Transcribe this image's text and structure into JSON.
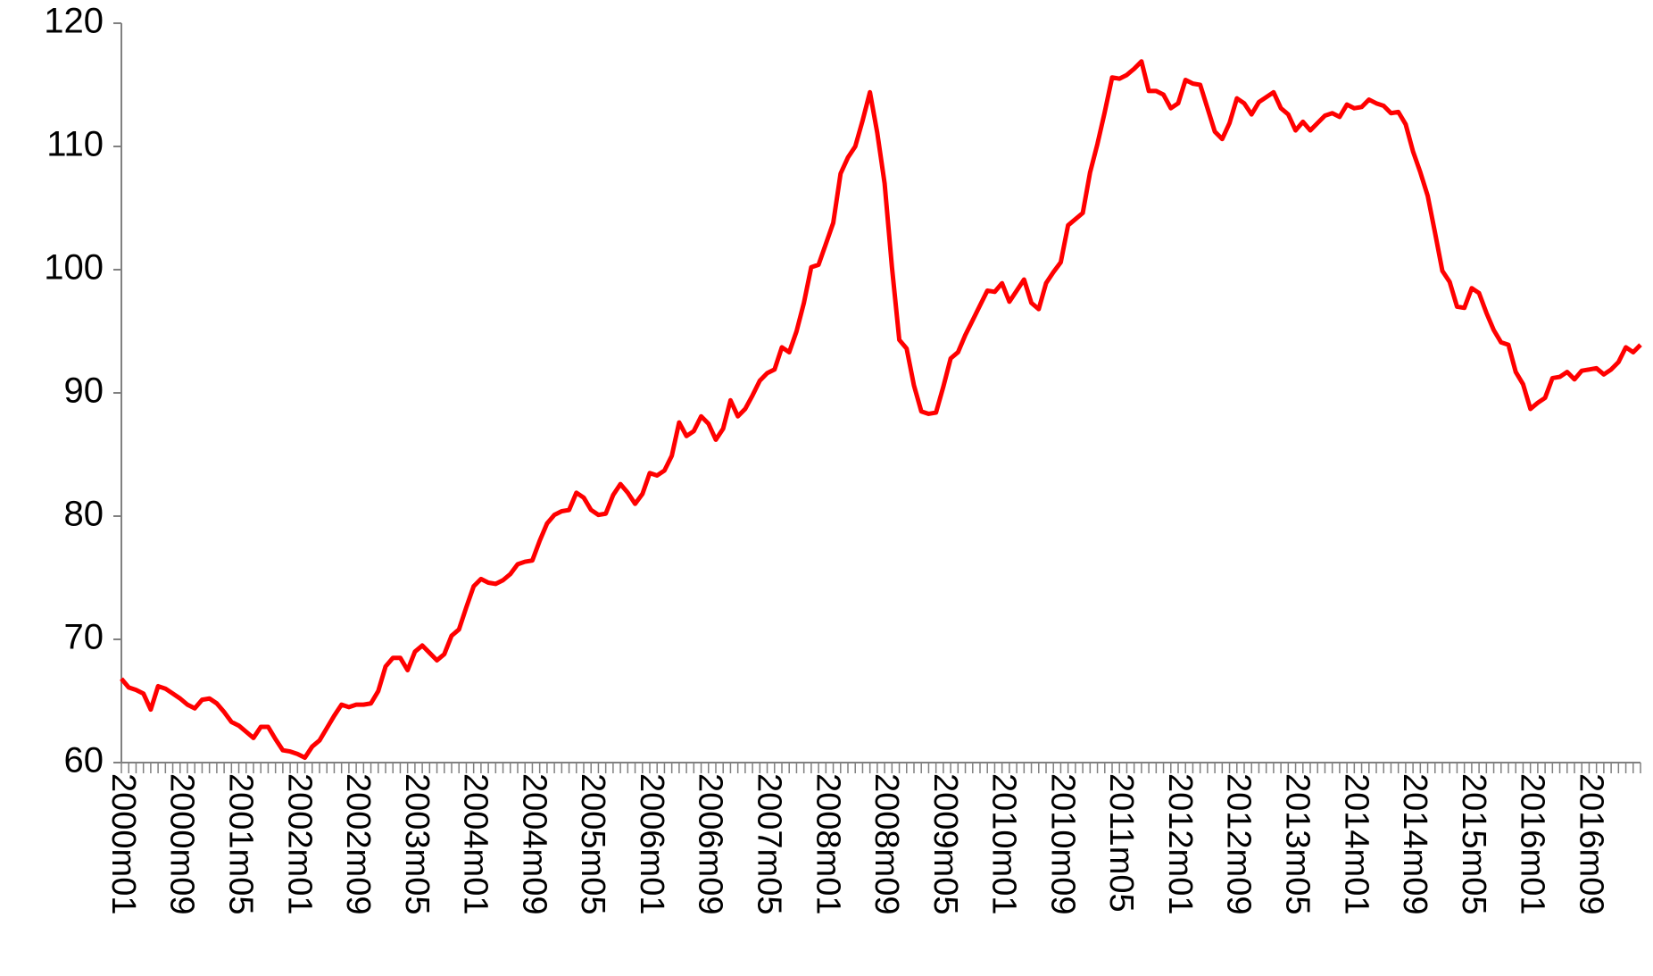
{
  "chart_data": {
    "type": "line",
    "categories": [
      "2000m01",
      null,
      null,
      null,
      null,
      null,
      null,
      null,
      "2000m09",
      null,
      null,
      null,
      null,
      null,
      null,
      null,
      "2001m05",
      null,
      null,
      null,
      null,
      null,
      null,
      null,
      "2002m01",
      null,
      null,
      null,
      null,
      null,
      null,
      null,
      "2002m09",
      null,
      null,
      null,
      null,
      null,
      null,
      null,
      "2003m05",
      null,
      null,
      null,
      null,
      null,
      null,
      null,
      "2004m01",
      null,
      null,
      null,
      null,
      null,
      null,
      null,
      "2004m09",
      null,
      null,
      null,
      null,
      null,
      null,
      null,
      "2005m05",
      null,
      null,
      null,
      null,
      null,
      null,
      null,
      "2006m01",
      null,
      null,
      null,
      null,
      null,
      null,
      null,
      "2006m09",
      null,
      null,
      null,
      null,
      null,
      null,
      null,
      "2007m05",
      null,
      null,
      null,
      null,
      null,
      null,
      null,
      "2008m01",
      null,
      null,
      null,
      null,
      null,
      null,
      null,
      "2008m09",
      null,
      null,
      null,
      null,
      null,
      null,
      null,
      "2009m05",
      null,
      null,
      null,
      null,
      null,
      null,
      null,
      "2010m01",
      null,
      null,
      null,
      null,
      null,
      null,
      null,
      "2010m09",
      null,
      null,
      null,
      null,
      null,
      null,
      null,
      "2011m05",
      null,
      null,
      null,
      null,
      null,
      null,
      null,
      "2012m01",
      null,
      null,
      null,
      null,
      null,
      null,
      null,
      "2012m09",
      null,
      null,
      null,
      null,
      null,
      null,
      null,
      "2013m05",
      null,
      null,
      null,
      null,
      null,
      null,
      null,
      "2014m01",
      null,
      null,
      null,
      null,
      null,
      null,
      null,
      "2014m09",
      null,
      null,
      null,
      null,
      null,
      null,
      null,
      "2015m05",
      null,
      null,
      null,
      null,
      null,
      null,
      null,
      "2016m01",
      null,
      null,
      null,
      null,
      null,
      null,
      null,
      "2016m09",
      null,
      null,
      null,
      null,
      null,
      null,
      null
    ],
    "values": [
      66.8,
      66.1,
      65.9,
      65.6,
      64.3,
      66.2,
      66.0,
      65.6,
      65.2,
      64.7,
      64.4,
      65.1,
      65.2,
      64.8,
      64.1,
      63.3,
      63.0,
      62.5,
      62.0,
      62.9,
      62.9,
      61.9,
      61.0,
      60.9,
      60.7,
      60.4,
      61.3,
      61.8,
      62.8,
      63.8,
      64.7,
      64.5,
      64.7,
      64.7,
      64.8,
      65.8,
      67.8,
      68.5,
      68.5,
      67.5,
      69.0,
      69.5,
      68.9,
      68.3,
      68.8,
      70.3,
      70.8,
      72.6,
      74.3,
      74.9,
      74.6,
      74.5,
      74.8,
      75.3,
      76.1,
      76.3,
      76.4,
      78.0,
      79.4,
      80.1,
      80.4,
      80.5,
      81.9,
      81.5,
      80.5,
      80.1,
      80.2,
      81.7,
      82.6,
      81.9,
      81.0,
      81.8,
      83.5,
      83.3,
      83.7,
      84.9,
      87.6,
      86.5,
      86.9,
      88.1,
      87.5,
      86.2,
      87.1,
      89.4,
      88.1,
      88.7,
      89.8,
      91.0,
      91.6,
      91.9,
      93.7,
      93.3,
      95.0,
      97.3,
      100.2,
      100.4,
      102.1,
      103.8,
      107.8,
      109.1,
      110.0,
      112.1,
      114.4,
      111.1,
      107.0,
      100.2,
      94.3,
      93.6,
      90.6,
      88.5,
      88.3,
      88.4,
      90.5,
      92.8,
      93.3,
      94.7,
      95.9,
      97.1,
      98.3,
      98.2,
      98.9,
      97.4,
      98.3,
      99.2,
      97.3,
      96.8,
      98.9,
      99.8,
      100.6,
      103.6,
      104.1,
      104.6,
      107.9,
      110.2,
      112.8,
      115.6,
      115.5,
      115.8,
      116.3,
      116.9,
      114.5,
      114.5,
      114.2,
      113.1,
      113.5,
      115.4,
      115.1,
      115.0,
      113.1,
      111.2,
      110.6,
      111.9,
      113.9,
      113.5,
      112.6,
      113.6,
      114.0,
      114.4,
      113.1,
      112.6,
      111.3,
      112.0,
      111.3,
      111.9,
      112.5,
      112.7,
      112.4,
      113.4,
      113.1,
      113.2,
      113.8,
      113.5,
      113.3,
      112.7,
      112.8,
      111.8,
      109.6,
      107.9,
      106.0,
      103.0,
      99.9,
      99.0,
      97.0,
      96.9,
      98.5,
      98.1,
      96.5,
      95.1,
      94.1,
      93.9,
      91.7,
      90.7,
      88.7,
      89.2,
      89.6,
      91.2,
      91.3,
      91.7,
      91.1,
      91.8,
      91.9,
      92.0,
      91.5,
      91.9,
      92.5,
      93.7,
      93.3,
      93.9
    ],
    "color": "#ff0000",
    "ylim": [
      60,
      120
    ],
    "yticks": [
      60,
      70,
      80,
      90,
      100,
      110,
      120
    ],
    "grid": false
  }
}
